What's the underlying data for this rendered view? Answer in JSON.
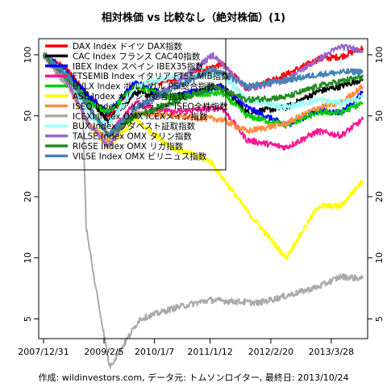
{
  "chart_data": {
    "type": "line",
    "title": "相対株価 vs 比較なし（絶対株価）(1)",
    "footer": "作成: wildinvestors.com, データ元: トムソンロイター, 最終日: 2013/10/24",
    "yscale": "log",
    "ylim": [
      4,
      120
    ],
    "yticks": [
      5,
      10,
      20,
      50,
      100
    ],
    "ytick_labels": [
      "5",
      "10",
      "20",
      "50",
      "100"
    ],
    "xlim": [
      "2007-12-31",
      "2013-10-24"
    ],
    "xticks": [
      "2007-12-31",
      "2009-02-05",
      "2010-01-07",
      "2011-01-12",
      "2012-02-20",
      "2013-03-28"
    ],
    "xtick_labels": [
      "2007/12/31",
      "2009/2/5",
      "2010/1/7",
      "2011/1/12",
      "2012/2/20",
      "2013/3/28"
    ],
    "legend_position": "top-left",
    "series": [
      {
        "name": "DAX Index ドイツ DAX指数",
        "color": "#ff0000",
        "points": [
          [
            "2007-12-31",
            100
          ],
          [
            "2008-06-01",
            85
          ],
          [
            "2008-11-01",
            62
          ],
          [
            "2009-03-05",
            50
          ],
          [
            "2009-09-01",
            70
          ],
          [
            "2010-05-01",
            75
          ],
          [
            "2011-04-01",
            90
          ],
          [
            "2011-09-15",
            68
          ],
          [
            "2012-06-01",
            80
          ],
          [
            "2012-12-31",
            95
          ],
          [
            "2013-06-01",
            98
          ],
          [
            "2013-10-24",
            108
          ]
        ]
      },
      {
        "name": "CAC Index フランス CAC40指数",
        "color": "#000000",
        "points": [
          [
            "2007-12-31",
            100
          ],
          [
            "2008-06-01",
            80
          ],
          [
            "2008-11-01",
            60
          ],
          [
            "2009-03-05",
            47
          ],
          [
            "2009-09-01",
            65
          ],
          [
            "2010-05-01",
            62
          ],
          [
            "2011-04-01",
            70
          ],
          [
            "2011-09-15",
            52
          ],
          [
            "2012-06-01",
            55
          ],
          [
            "2012-12-31",
            66
          ],
          [
            "2013-06-01",
            70
          ],
          [
            "2013-10-24",
            76
          ]
        ]
      },
      {
        "name": "IBEX Index スペイン IBEX35指数",
        "color": "#0000ff",
        "points": [
          [
            "2007-12-31",
            100
          ],
          [
            "2008-06-01",
            82
          ],
          [
            "2008-11-01",
            62
          ],
          [
            "2009-03-05",
            52
          ],
          [
            "2009-09-01",
            73
          ],
          [
            "2010-05-01",
            62
          ],
          [
            "2011-04-01",
            70
          ],
          [
            "2011-09-15",
            55
          ],
          [
            "2012-06-01",
            45
          ],
          [
            "2012-12-31",
            53
          ],
          [
            "2013-06-01",
            52
          ],
          [
            "2013-10-24",
            65
          ]
        ]
      },
      {
        "name": "FTSEMIB Index イタリア FTSE MIB指数",
        "color": "#ff1493",
        "points": [
          [
            "2007-12-31",
            100
          ],
          [
            "2008-06-01",
            78
          ],
          [
            "2008-11-01",
            55
          ],
          [
            "2009-03-05",
            40
          ],
          [
            "2009-09-01",
            58
          ],
          [
            "2010-05-01",
            52
          ],
          [
            "2011-04-01",
            55
          ],
          [
            "2011-09-15",
            38
          ],
          [
            "2012-06-01",
            35
          ],
          [
            "2012-12-31",
            42
          ],
          [
            "2013-06-01",
            40
          ],
          [
            "2013-10-24",
            48
          ]
        ]
      },
      {
        "name": "BVLX Index ポルトガル PSI総合指数",
        "color": "#00cc00",
        "points": [
          [
            "2007-12-31",
            100
          ],
          [
            "2008-06-01",
            80
          ],
          [
            "2008-11-01",
            58
          ],
          [
            "2009-03-05",
            52
          ],
          [
            "2009-09-01",
            70
          ],
          [
            "2010-05-01",
            62
          ],
          [
            "2011-04-01",
            65
          ],
          [
            "2011-09-15",
            50
          ],
          [
            "2012-06-01",
            45
          ],
          [
            "2012-12-31",
            52
          ],
          [
            "2013-06-01",
            52
          ],
          [
            "2013-10-24",
            58
          ]
        ]
      },
      {
        "name": "ASE Index ギリシャ総合指数",
        "color": "#ffff00",
        "points": [
          [
            "2007-12-31",
            100
          ],
          [
            "2008-06-01",
            75
          ],
          [
            "2008-11-01",
            45
          ],
          [
            "2009-03-05",
            35
          ],
          [
            "2009-09-01",
            48
          ],
          [
            "2010-05-01",
            35
          ],
          [
            "2011-01-12",
            30
          ],
          [
            "2011-09-15",
            17
          ],
          [
            "2012-06-01",
            10
          ],
          [
            "2012-12-31",
            18
          ],
          [
            "2013-06-01",
            18
          ],
          [
            "2013-10-24",
            24
          ]
        ]
      },
      {
        "name": "ISEQ Index アイルランド ISEQ全株指数",
        "color": "#ff8c42",
        "points": [
          [
            "2007-12-31",
            100
          ],
          [
            "2008-06-01",
            72
          ],
          [
            "2008-11-01",
            45
          ],
          [
            "2009-03-05",
            38
          ],
          [
            "2009-09-01",
            52
          ],
          [
            "2010-05-01",
            50
          ],
          [
            "2011-04-01",
            48
          ],
          [
            "2011-09-15",
            42
          ],
          [
            "2012-06-01",
            46
          ],
          [
            "2012-12-31",
            55
          ],
          [
            "2013-06-01",
            58
          ],
          [
            "2013-10-24",
            70
          ]
        ]
      },
      {
        "name": "ICEXI Index OMX ICEXメイン指数",
        "color": "#aaaaaa",
        "points": [
          [
            "2007-12-31",
            100
          ],
          [
            "2008-05-01",
            75
          ],
          [
            "2008-09-15",
            60
          ],
          [
            "2008-10-10",
            14
          ],
          [
            "2008-12-01",
            8
          ],
          [
            "2009-03-15",
            2.9
          ],
          [
            "2009-10-01",
            5
          ],
          [
            "2010-06-01",
            5.7
          ],
          [
            "2011-01-12",
            6.2
          ],
          [
            "2011-12-01",
            6.0
          ],
          [
            "2012-06-01",
            6.5
          ],
          [
            "2013-01-01",
            7.2
          ],
          [
            "2013-06-01",
            8.1
          ],
          [
            "2013-10-24",
            7.9
          ]
        ]
      },
      {
        "name": "BUX Index ブダペスト証取指数",
        "color": "#99ffff",
        "points": [
          [
            "2007-12-31",
            100
          ],
          [
            "2008-06-01",
            80
          ],
          [
            "2008-11-01",
            50
          ],
          [
            "2009-03-05",
            45
          ],
          [
            "2009-09-01",
            70
          ],
          [
            "2010-05-01",
            78
          ],
          [
            "2011-04-01",
            80
          ],
          [
            "2011-09-15",
            60
          ],
          [
            "2012-06-01",
            55
          ],
          [
            "2012-12-31",
            60
          ],
          [
            "2013-06-01",
            58
          ],
          [
            "2013-10-24",
            62
          ]
        ]
      },
      {
        "name": "TALSE Index OMX タリン指数",
        "color": "#9966cc",
        "points": [
          [
            "2007-12-31",
            100
          ],
          [
            "2008-06-01",
            75
          ],
          [
            "2008-11-01",
            45
          ],
          [
            "2009-03-05",
            35
          ],
          [
            "2009-09-01",
            55
          ],
          [
            "2010-05-01",
            70
          ],
          [
            "2011-02-01",
            100
          ],
          [
            "2011-09-15",
            68
          ],
          [
            "2012-06-01",
            75
          ],
          [
            "2012-12-31",
            95
          ],
          [
            "2013-06-01",
            110
          ],
          [
            "2013-10-24",
            105
          ]
        ]
      },
      {
        "name": "RIGSE Index OMX リガ指数",
        "color": "#228b22",
        "points": [
          [
            "2007-12-31",
            100
          ],
          [
            "2008-06-01",
            78
          ],
          [
            "2008-11-01",
            55
          ],
          [
            "2009-03-05",
            40
          ],
          [
            "2009-09-01",
            50
          ],
          [
            "2010-05-01",
            58
          ],
          [
            "2011-02-01",
            70
          ],
          [
            "2011-09-15",
            60
          ],
          [
            "2012-06-01",
            62
          ],
          [
            "2012-12-31",
            70
          ],
          [
            "2013-06-01",
            74
          ],
          [
            "2013-10-24",
            78
          ]
        ]
      },
      {
        "name": "VILSE Index OMX ビリニュス指数",
        "color": "#4682b4",
        "points": [
          [
            "2007-12-31",
            100
          ],
          [
            "2008-06-01",
            80
          ],
          [
            "2008-11-01",
            55
          ],
          [
            "2009-03-05",
            40
          ],
          [
            "2009-09-01",
            55
          ],
          [
            "2010-05-01",
            68
          ],
          [
            "2011-02-01",
            85
          ],
          [
            "2011-09-15",
            70
          ],
          [
            "2012-06-01",
            75
          ],
          [
            "2012-12-31",
            80
          ],
          [
            "2013-06-01",
            82
          ],
          [
            "2013-10-24",
            83
          ]
        ]
      }
    ]
  }
}
